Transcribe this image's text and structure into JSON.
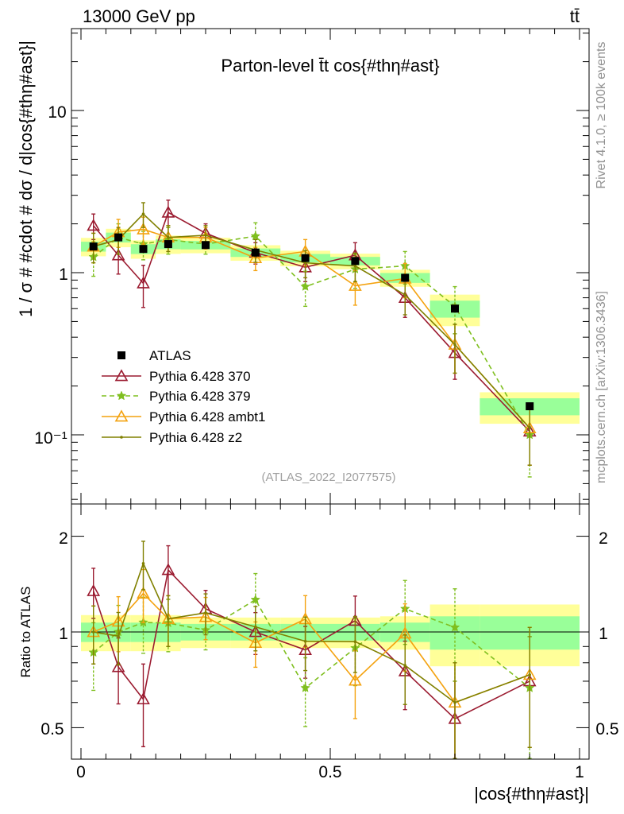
{
  "header": {
    "energy_label": "13000 GeV pp",
    "process_label": "tt̄"
  },
  "side": {
    "rivet": "Rivet 4.1.0, ≥ 100k events",
    "source": "mcplots.cern.ch [arXiv:1306.3436]"
  },
  "chart_data": {
    "type": "line",
    "title": "Parton-level t̄t cos{#thη#ast}",
    "analysis_id": "(ATLAS_2022_I2077575)",
    "xlabel": "|cos{#thη#ast}|",
    "ylabel": "1 / σ # #cdot # dσ / d|cos{#thη#ast}|",
    "ratio_ylabel": "Ratio to ATLAS",
    "xlim": [
      0,
      1
    ],
    "ylim": [
      0.04,
      35
    ],
    "ylog": true,
    "ratio_ylim": [
      0.4,
      2.4
    ],
    "x_ticks": [
      "0",
      "0.5",
      "1"
    ],
    "y_ticks": [
      "10⁻¹",
      "1",
      "10"
    ],
    "ratio_ticks": [
      "0.5",
      "1",
      "2"
    ],
    "bins": [
      [
        0.0,
        0.05
      ],
      [
        0.05,
        0.1
      ],
      [
        0.1,
        0.15
      ],
      [
        0.15,
        0.2
      ],
      [
        0.2,
        0.3
      ],
      [
        0.3,
        0.4
      ],
      [
        0.4,
        0.5
      ],
      [
        0.5,
        0.6
      ],
      [
        0.6,
        0.7
      ],
      [
        0.7,
        0.8
      ],
      [
        0.8,
        1.0
      ]
    ],
    "x": [
      0.025,
      0.075,
      0.125,
      0.175,
      0.25,
      0.35,
      0.45,
      0.55,
      0.65,
      0.75,
      0.9
    ],
    "data": {
      "name": "ATLAS",
      "values": [
        1.45,
        1.65,
        1.4,
        1.5,
        1.48,
        1.33,
        1.23,
        1.18,
        0.93,
        0.6,
        0.15
      ],
      "band_inner": [
        0.07,
        0.07,
        0.07,
        0.07,
        0.06,
        0.06,
        0.06,
        0.06,
        0.07,
        0.12,
        0.12
      ],
      "band_outer": [
        0.13,
        0.13,
        0.13,
        0.13,
        0.11,
        0.11,
        0.11,
        0.11,
        0.12,
        0.22,
        0.22
      ]
    },
    "series": [
      {
        "name": "Pythia 6.428 370",
        "color": "#9b1b30",
        "marker": "triangle-open",
        "dash": "",
        "values": [
          1.95,
          1.28,
          0.86,
          2.35,
          1.75,
          1.33,
          1.08,
          1.28,
          0.7,
          0.32,
          0.105
        ],
        "errors": [
          0.35,
          0.3,
          0.25,
          0.45,
          0.25,
          0.2,
          0.2,
          0.25,
          0.17,
          0.1,
          0.04
        ]
      },
      {
        "name": "Pythia 6.428 379",
        "color": "#7fbf1f",
        "marker": "star",
        "dash": "6,4",
        "values": [
          1.25,
          1.65,
          1.5,
          1.6,
          1.5,
          1.68,
          0.82,
          1.05,
          1.1,
          0.62,
          0.1
        ],
        "errors": [
          0.3,
          0.35,
          0.3,
          0.3,
          0.2,
          0.35,
          0.2,
          0.25,
          0.25,
          0.2,
          0.045
        ]
      },
      {
        "name": "Pythia 6.428 ambt1",
        "color": "#f4a20f",
        "marker": "triangle-open",
        "dash": "",
        "values": [
          1.45,
          1.78,
          1.85,
          1.65,
          1.65,
          1.23,
          1.35,
          0.83,
          0.92,
          0.36,
          0.11
        ],
        "errors": [
          0.3,
          0.35,
          0.35,
          0.3,
          0.25,
          0.2,
          0.25,
          0.2,
          0.22,
          0.12,
          0.045
        ]
      },
      {
        "name": "Pythia 6.428 z2",
        "color": "#808000",
        "marker": "dot",
        "dash": "",
        "values": [
          1.45,
          1.6,
          2.3,
          1.65,
          1.7,
          1.38,
          1.15,
          1.1,
          0.73,
          0.36,
          0.11
        ],
        "errors": [
          0.3,
          0.3,
          0.4,
          0.3,
          0.25,
          0.22,
          0.22,
          0.22,
          0.18,
          0.12,
          0.045
        ]
      }
    ]
  }
}
